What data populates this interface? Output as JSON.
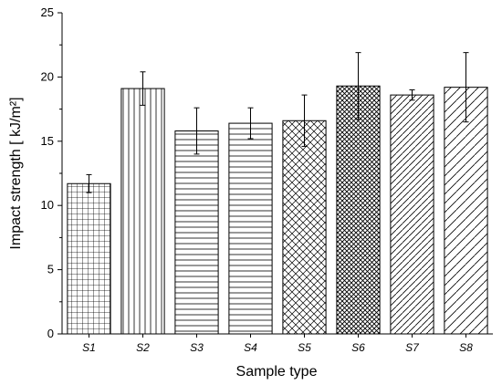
{
  "chart_data": {
    "type": "bar",
    "categories": [
      "S1",
      "S2",
      "S3",
      "S4",
      "S5",
      "S6",
      "S7",
      "S8"
    ],
    "values": [
      11.7,
      19.1,
      15.8,
      16.4,
      16.6,
      19.3,
      18.6,
      19.2
    ],
    "errors": [
      0.7,
      1.3,
      1.8,
      1.2,
      2.0,
      2.6,
      0.4,
      2.7
    ],
    "patterns": [
      "grid",
      "vertical",
      "horizontal",
      "horizontal",
      "crosshatch",
      "crosshatch-dense",
      "diagonal",
      "diagonal-wide"
    ],
    "ylabel": "Impact strength [ kJ/m²]",
    "xlabel": "Sample type",
    "ylim": [
      0,
      25
    ],
    "yticks": [
      0,
      5,
      10,
      15,
      20,
      25
    ],
    "grid": false,
    "colors": {
      "stroke": "#000000",
      "fill": "#ffffff"
    }
  }
}
